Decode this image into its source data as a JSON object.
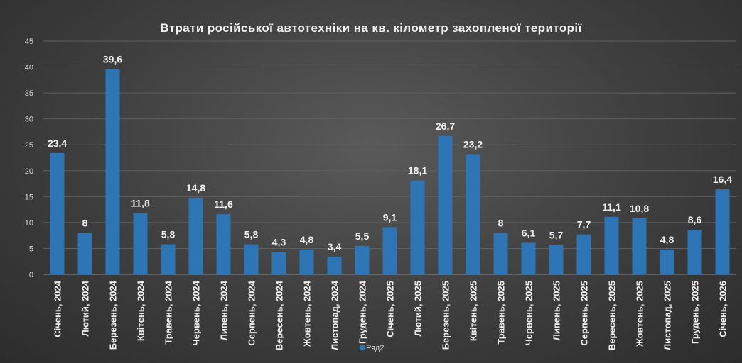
{
  "chart_data": {
    "type": "bar",
    "title": "Втрати російської автотехніки на кв. кілометр захопленої території",
    "xlabel": "",
    "ylabel": "",
    "ylim": [
      0,
      45
    ],
    "yticks": [
      0,
      5,
      10,
      15,
      20,
      25,
      30,
      35,
      40,
      45
    ],
    "grid": true,
    "legend": "bottom",
    "bar_color": "#2e75b6",
    "categories": [
      "Січень, 2024",
      "Лютий, 2024",
      "Березень, 2024",
      "Квітень, 2024",
      "Травень, 2024",
      "Червень, 2024",
      "Липень, 2024",
      "Серпень, 2024",
      "Вересень, 2024",
      "Жовтень, 2024",
      "Листопад, 2024",
      "Грудень, 2024",
      "Січень, 2025",
      "Лютий, 2025",
      "Березень, 2025",
      "Квітень, 2025",
      "Травень, 2025",
      "Червень, 2025",
      "Липень, 2025",
      "Серпень, 2025",
      "Вересень, 2025",
      "Жовтень, 2025",
      "Листопад, 2025",
      "Грудень, 2025",
      "Січень, 2026"
    ],
    "series": [
      {
        "name": "Ряд2",
        "values": [
          23.4,
          8,
          39.6,
          11.8,
          5.8,
          14.8,
          11.6,
          5.8,
          4.3,
          4.8,
          3.4,
          5.5,
          9.1,
          18.1,
          26.7,
          23.2,
          8,
          6.1,
          5.7,
          7.7,
          11.1,
          10.8,
          4.8,
          8.6,
          16.4
        ],
        "labels": [
          "23,4",
          "8",
          "39,6",
          "11,8",
          "5,8",
          "14,8",
          "11,6",
          "5,8",
          "4,3",
          "4,8",
          "3,4",
          "5,5",
          "9,1",
          "18,1",
          "26,7",
          "23,2",
          "8",
          "6,1",
          "5,7",
          "7,7",
          "11,1",
          "10,8",
          "4,8",
          "8,6",
          "16,4"
        ]
      }
    ]
  }
}
